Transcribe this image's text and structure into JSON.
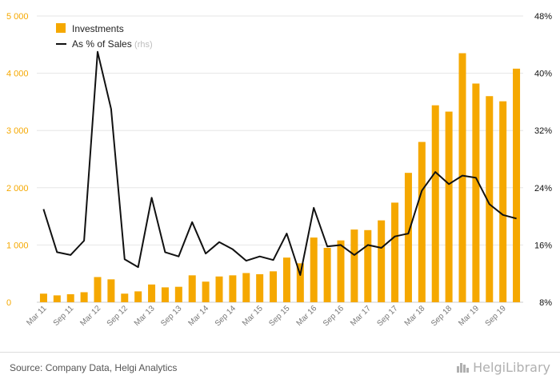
{
  "chart_data": {
    "type": "bar",
    "title": "",
    "categories": [
      "Mar 11",
      "Jun 11",
      "Sep 11",
      "Dec 11",
      "Mar 12",
      "Jun 12",
      "Sep 12",
      "Dec 12",
      "Mar 13",
      "Jun 13",
      "Sep 13",
      "Dec 13",
      "Mar 14",
      "Jun 14",
      "Sep 14",
      "Dec 14",
      "Mar 15",
      "Jun 15",
      "Sep 15",
      "Dec 15",
      "Mar 16",
      "Jun 16",
      "Sep 16",
      "Dec 16",
      "Mar 17",
      "Jun 17",
      "Sep 17",
      "Dec 17",
      "Mar 18",
      "Jun 18",
      "Sep 18",
      "Dec 18",
      "Mar 19",
      "Jun 19",
      "Sep 19",
      "Dec 19"
    ],
    "x_tick_labels": [
      "Mar 11",
      "Sep 11",
      "Mar 12",
      "Sep 12",
      "Mar 13",
      "Sep 13",
      "Mar 14",
      "Sep 14",
      "Mar 15",
      "Sep 15",
      "Mar 16",
      "Sep 16",
      "Mar 17",
      "Sep 17",
      "Mar 18",
      "Sep 18",
      "Mar 19",
      "Sep 19"
    ],
    "series": [
      {
        "name": "Investments",
        "type": "bar",
        "axis": "left",
        "color": "#f5a800",
        "values": [
          150,
          120,
          140,
          175,
          440,
          400,
          150,
          190,
          310,
          260,
          270,
          470,
          360,
          450,
          470,
          510,
          490,
          540,
          780,
          680,
          1130,
          950,
          1080,
          1270,
          1260,
          1430,
          1740,
          2260,
          2800,
          3440,
          3330,
          4350,
          3820,
          3600,
          3510,
          4080
        ]
      },
      {
        "name": "As % of Sales",
        "name_suffix": "(rhs)",
        "type": "line",
        "axis": "right",
        "color": "#111111",
        "values": [
          21.0,
          15.0,
          14.6,
          16.6,
          43.0,
          35.0,
          14.0,
          12.9,
          22.6,
          15.0,
          14.4,
          19.2,
          14.8,
          16.4,
          15.4,
          13.8,
          14.4,
          13.9,
          17.6,
          11.8,
          21.2,
          15.8,
          16.0,
          14.6,
          16.0,
          15.6,
          17.2,
          17.6,
          23.6,
          26.2,
          24.5,
          25.7,
          25.4,
          21.7,
          20.2,
          19.7
        ]
      }
    ],
    "y_left": {
      "ylim": [
        0,
        5000
      ],
      "ticks": [
        0,
        1000,
        2000,
        3000,
        4000,
        5000
      ],
      "tick_labels": [
        "0",
        "1 000",
        "2 000",
        "3 000",
        "4 000",
        "5 000"
      ],
      "color": "#f5a800"
    },
    "y_right": {
      "ylim": [
        8,
        48
      ],
      "ticks": [
        8,
        16,
        24,
        32,
        40,
        48
      ],
      "tick_labels": [
        "8%",
        "16%",
        "24%",
        "32%",
        "40%",
        "48%"
      ],
      "color": "#111111"
    },
    "grid": true,
    "legend": "top-left"
  },
  "footer": {
    "source": "Source: Company Data, Helgi Analytics",
    "brand": "HelgiLibrary"
  }
}
